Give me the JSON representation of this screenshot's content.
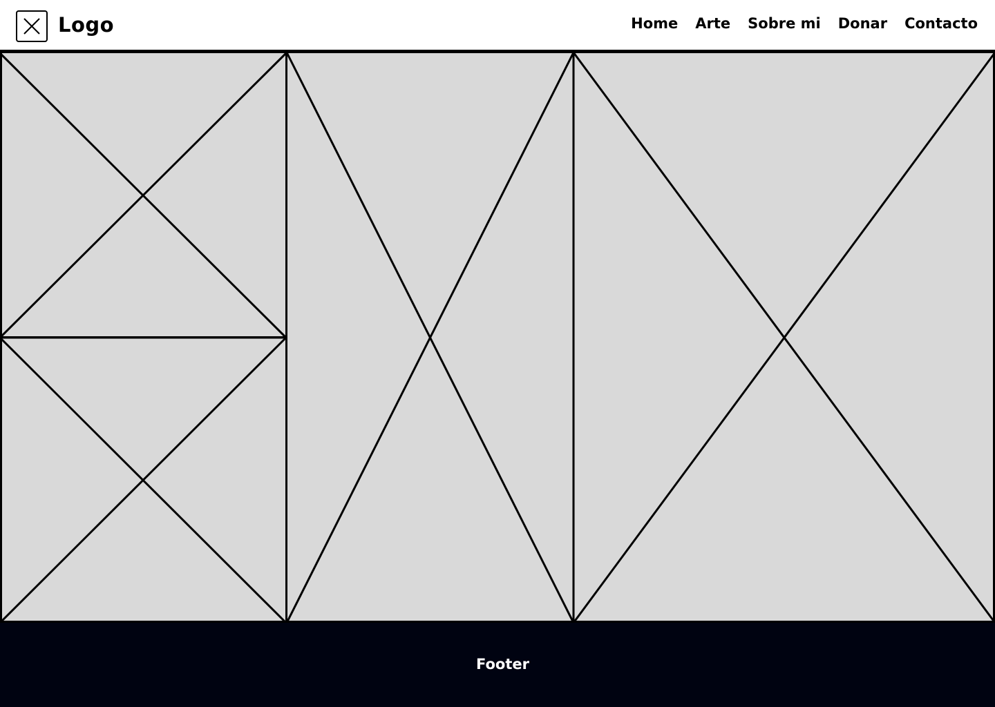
{
  "header": {
    "logo_icon": "placeholder-x-icon",
    "logo_text": "Logo",
    "nav": [
      {
        "label": "Home"
      },
      {
        "label": "Arte"
      },
      {
        "label": "Sobre mi"
      },
      {
        "label": "Donar"
      },
      {
        "label": "Contacto"
      }
    ]
  },
  "gallery": {
    "images": [
      {
        "icon": "image-placeholder-icon"
      },
      {
        "icon": "image-placeholder-icon"
      },
      {
        "icon": "image-placeholder-icon"
      },
      {
        "icon": "image-placeholder-icon"
      }
    ]
  },
  "footer": {
    "text": "Footer"
  },
  "colors": {
    "header_bg": "#ffffff",
    "placeholder_fill": "#d9d9d9",
    "line": "#000000",
    "footer_bg": "#000311",
    "footer_text": "#ffffff"
  }
}
